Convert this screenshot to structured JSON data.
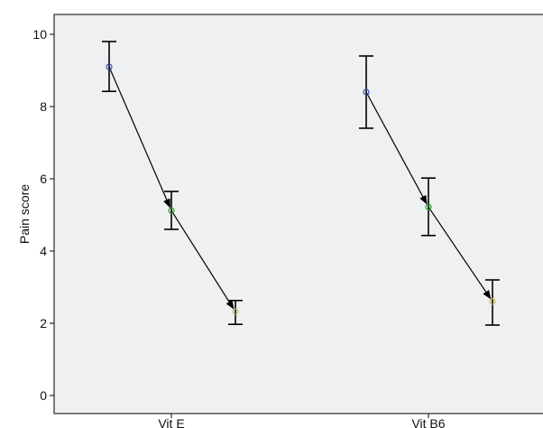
{
  "chart_data": {
    "type": "line",
    "title": "",
    "xlabel": "",
    "ylabel": "Pain score",
    "ylim": [
      -0.5,
      10.55
    ],
    "yticks": [
      0,
      2,
      4,
      6,
      8,
      10
    ],
    "grid": false,
    "colors": {
      "plot_background": "#eef0f2",
      "border": "#000000",
      "line": "#000000",
      "marker_1": "#3344aa",
      "marker_2": "#22aa22",
      "marker_3": "#ccbb55"
    },
    "groups": [
      {
        "label": "Vit E",
        "points": [
          {
            "mean": 9.1,
            "lower": 8.42,
            "upper": 9.8
          },
          {
            "mean": 5.12,
            "lower": 4.6,
            "upper": 5.65
          },
          {
            "mean": 2.32,
            "lower": 1.97,
            "upper": 2.63
          }
        ]
      },
      {
        "label": "Vit B6",
        "points": [
          {
            "mean": 8.4,
            "lower": 7.4,
            "upper": 9.4
          },
          {
            "mean": 5.22,
            "lower": 4.43,
            "upper": 6.02
          },
          {
            "mean": 2.6,
            "lower": 1.95,
            "upper": 3.2
          }
        ]
      }
    ]
  }
}
